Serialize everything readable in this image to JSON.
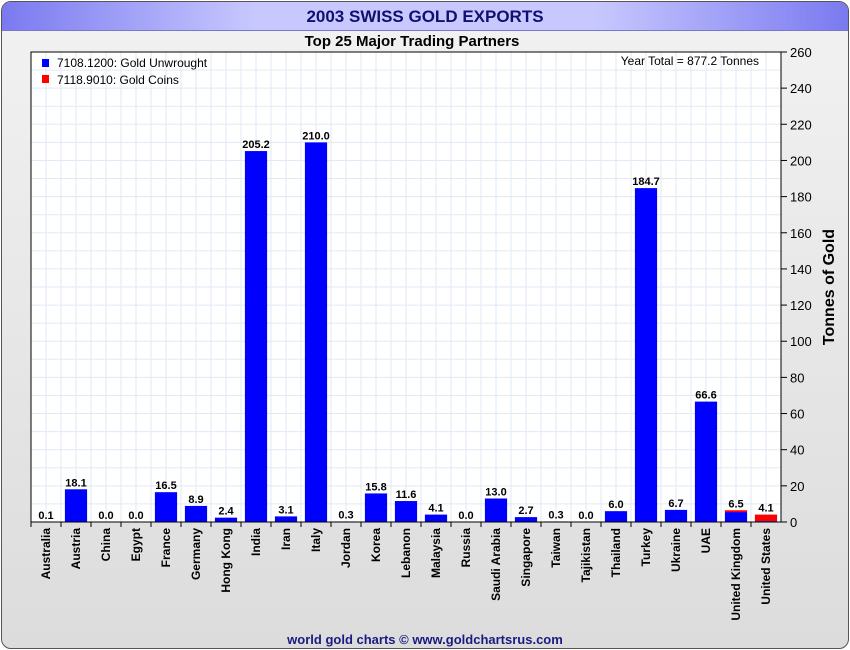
{
  "header": {
    "title": "2003 SWISS GOLD EXPORTS"
  },
  "footer": {
    "credit": "world gold charts © www.goldchartsrus.com"
  },
  "chart_data": {
    "type": "bar",
    "stacked": true,
    "title": "Top 25 Major Trading Partners",
    "annotation": "Year Total = 877.2 Tonnes",
    "ylabel": "Tonnes of Gold",
    "xlabel": "",
    "ylim": [
      0,
      260
    ],
    "yticks": [
      0,
      20,
      40,
      60,
      80,
      100,
      120,
      140,
      160,
      180,
      200,
      220,
      240,
      260
    ],
    "grid": true,
    "legend_position": "top-left",
    "colors": {
      "unwrought": "#0000ff",
      "coins": "#ff0000"
    },
    "categories": [
      "Australia",
      "Austria",
      "China",
      "Egypt",
      "France",
      "Germany",
      "Hong Kong",
      "India",
      "Iran",
      "Italy",
      "Jordan",
      "Korea",
      "Lebanon",
      "Malaysia",
      "Russia",
      "Saudi Arabia",
      "Singapore",
      "Taiwan",
      "Tajikistan",
      "Thailand",
      "Turkey",
      "Ukraine",
      "UAE",
      "United Kingdom",
      "United States"
    ],
    "series": [
      {
        "name": "7108.1200: Gold Unwrought",
        "values": [
          0.1,
          18.1,
          0.0,
          0.0,
          16.5,
          8.9,
          2.4,
          205.2,
          3.1,
          210.0,
          0.3,
          15.8,
          11.6,
          4.1,
          0.0,
          13.0,
          2.7,
          0.3,
          0.0,
          6.0,
          184.7,
          6.7,
          66.6,
          5.5,
          0.5
        ]
      },
      {
        "name": "7118.9010: Gold Coins",
        "values": [
          0,
          0,
          0,
          0,
          0,
          0,
          0,
          0,
          0,
          0,
          0,
          0,
          0,
          0,
          0,
          0,
          0,
          0,
          0,
          0,
          0,
          0,
          0,
          1.0,
          3.6
        ]
      }
    ],
    "data_labels": [
      "0.1",
      "18.1",
      "0.0",
      "0.0",
      "16.5",
      "8.9",
      "2.4",
      "205.2",
      "3.1",
      "210.0",
      "0.3",
      "15.8",
      "11.6",
      "4.1",
      "0.0",
      "13.0",
      "2.7",
      "0.3",
      "0.0",
      "6.0",
      "184.7",
      "6.7",
      "66.6",
      "6.5",
      "4.1"
    ]
  }
}
